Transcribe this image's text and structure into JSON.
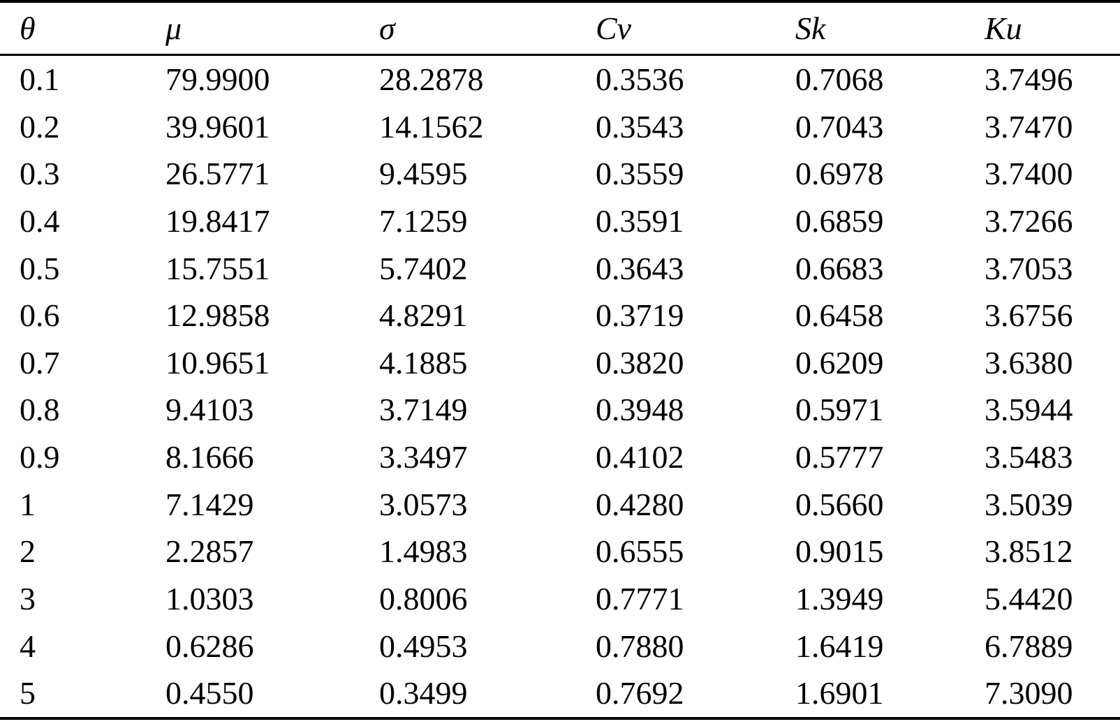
{
  "table": {
    "columns": [
      {
        "key": "theta",
        "label": "θ"
      },
      {
        "key": "mu",
        "label": "μ"
      },
      {
        "key": "sigma",
        "label": "σ"
      },
      {
        "key": "cv",
        "label": "Cv"
      },
      {
        "key": "sk",
        "label": "Sk"
      },
      {
        "key": "ku",
        "label": "Ku"
      }
    ],
    "rows": [
      [
        "0.1",
        "79.9900",
        "28.2878",
        "0.3536",
        "0.7068",
        "3.7496"
      ],
      [
        "0.2",
        "39.9601",
        "14.1562",
        "0.3543",
        "0.7043",
        "3.7470"
      ],
      [
        "0.3",
        "26.5771",
        "9.4595",
        "0.3559",
        "0.6978",
        "3.7400"
      ],
      [
        "0.4",
        "19.8417",
        "7.1259",
        "0.3591",
        "0.6859",
        "3.7266"
      ],
      [
        "0.5",
        "15.7551",
        "5.7402",
        "0.3643",
        "0.6683",
        "3.7053"
      ],
      [
        "0.6",
        "12.9858",
        "4.8291",
        "0.3719",
        "0.6458",
        "3.6756"
      ],
      [
        "0.7",
        "10.9651",
        "4.1885",
        "0.3820",
        "0.6209",
        "3.6380"
      ],
      [
        "0.8",
        "9.4103",
        "3.7149",
        "0.3948",
        "0.5971",
        "3.5944"
      ],
      [
        "0.9",
        "8.1666",
        "3.3497",
        "0.4102",
        "0.5777",
        "3.5483"
      ],
      [
        "1",
        "7.1429",
        "3.0573",
        "0.4280",
        "0.5660",
        "3.5039"
      ],
      [
        "2",
        "2.2857",
        "1.4983",
        "0.6555",
        "0.9015",
        "3.8512"
      ],
      [
        "3",
        "1.0303",
        "0.8006",
        "0.7771",
        "1.3949",
        "5.4420"
      ],
      [
        "4",
        "0.6286",
        "0.4953",
        "0.7880",
        "1.6419",
        "6.7889"
      ],
      [
        "5",
        "0.4550",
        "0.3499",
        "0.7692",
        "1.6901",
        "7.3090"
      ]
    ],
    "colors": {
      "text": "#000000",
      "background": "#ffffff",
      "rule": "#000000"
    }
  }
}
